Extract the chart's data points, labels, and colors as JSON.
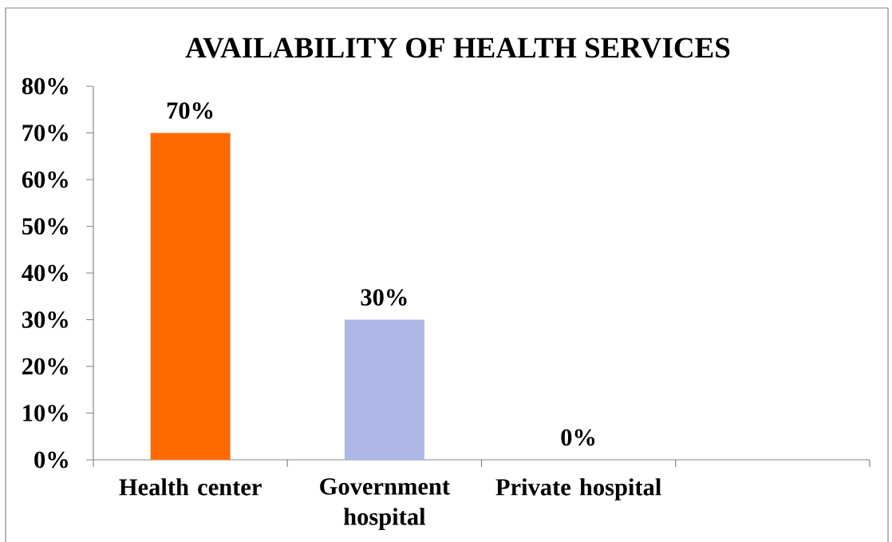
{
  "chart_data": {
    "type": "bar",
    "title": "AVAILABILITY OF HEALTH SERVICES",
    "categories": [
      "Health center",
      "Government hospital",
      "Private hospital",
      null
    ],
    "values": [
      70,
      30,
      0,
      null
    ],
    "colors": [
      "#ff6a00",
      "#aeb7e6",
      "#4f81bd",
      null
    ],
    "value_labels": [
      "70%",
      "30%",
      "0%",
      null
    ],
    "ylim": [
      0,
      80
    ],
    "yticks": [
      {
        "value": 0,
        "label": "0%"
      },
      {
        "value": 10,
        "label": "10%"
      },
      {
        "value": 20,
        "label": "20%"
      },
      {
        "value": 30,
        "label": "30%"
      },
      {
        "value": 40,
        "label": "40%"
      },
      {
        "value": 50,
        "label": "50%"
      },
      {
        "value": 60,
        "label": "60%"
      },
      {
        "value": 70,
        "label": "70%"
      },
      {
        "value": 80,
        "label": "80%"
      }
    ]
  }
}
